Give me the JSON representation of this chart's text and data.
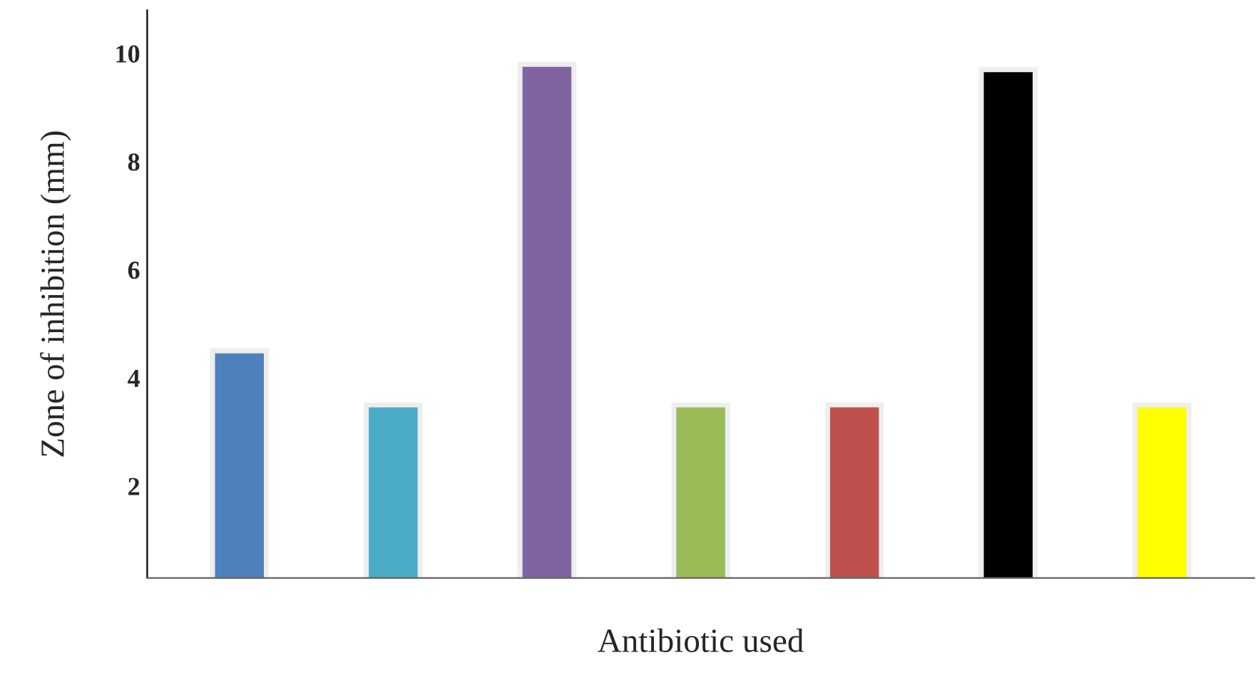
{
  "chart_data": {
    "type": "bar",
    "xlabel": "Antibiotic used",
    "ylabel": "Zone of inhibition (mm)",
    "categories": [
      null,
      null,
      null,
      null,
      null,
      null,
      null
    ],
    "values": [
      4.5,
      3.5,
      9.8,
      3.5,
      3.5,
      9.7,
      3.5
    ],
    "colors": [
      "#4f81bd",
      "#4bacc6",
      "#8064a2",
      "#9bbb59",
      "#c0504d",
      "#000000",
      "#ffff00"
    ],
    "ylim": [
      0.3,
      10.8
    ],
    "yticks": [
      2,
      4,
      6,
      8,
      10
    ],
    "grid": false,
    "tick_labels": "y"
  }
}
